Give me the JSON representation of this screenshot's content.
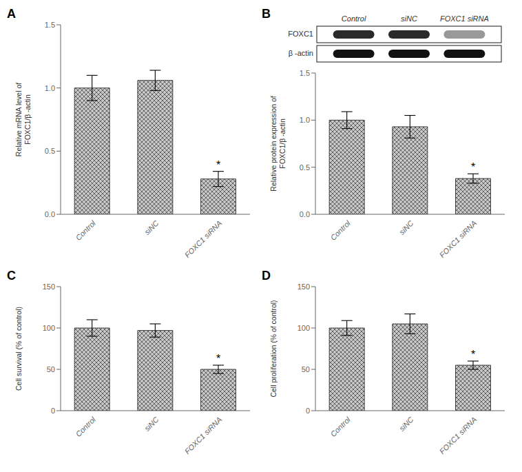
{
  "chart_data": [
    {
      "type": "bar",
      "title": "A",
      "categories": [
        "Control",
        "siNC",
        "FOXC1 siRNA"
      ],
      "values": [
        1.0,
        1.06,
        0.28
      ],
      "errors": [
        0.1,
        0.08,
        0.06
      ],
      "ylabel": "Relative mRNA level of\nFOXC1/β -actin",
      "ylim": [
        0,
        1.5
      ],
      "yticks": [
        {
          "value": 0.0,
          "label": "0.0"
        },
        {
          "value": 0.5,
          "label": "0.5"
        },
        {
          "value": 1.0,
          "label": "1.0"
        },
        {
          "value": 1.5,
          "label": "1.5"
        }
      ],
      "color": "#c8c8c8",
      "annotations": [
        {
          "category": "FOXC1 siRNA",
          "text": "*"
        }
      ]
    },
    {
      "type": "bar",
      "title": "B",
      "categories": [
        "Control",
        "siNC",
        "FOXC1 siRNA"
      ],
      "values": [
        1.0,
        0.93,
        0.38
      ],
      "errors": [
        0.09,
        0.12,
        0.05
      ],
      "ylabel": "Relative protein expression of\nFOXC1/β -actin",
      "ylim": [
        0,
        1.5
      ],
      "yticks": [
        {
          "value": 0.0,
          "label": "0.0"
        },
        {
          "value": 0.5,
          "label": "0.5"
        },
        {
          "value": 1.0,
          "label": "1.0"
        },
        {
          "value": 1.5,
          "label": "1.5"
        }
      ],
      "color": "#c8c8c8",
      "annotations": [
        {
          "category": "FOXC1 siRNA",
          "text": "*"
        }
      ],
      "inset": {
        "type": "western_blot",
        "categories": [
          "Control",
          "siNC",
          "FOXC1 siRNA"
        ],
        "series": [
          {
            "name": "FOXC1",
            "colors": [
              "#2a2a2a",
              "#2a2a2a",
              "#999999"
            ]
          },
          {
            "name": "β -actin",
            "colors": [
              "#111111",
              "#111111",
              "#111111"
            ]
          }
        ]
      }
    },
    {
      "type": "bar",
      "title": "C",
      "categories": [
        "Control",
        "siNC",
        "FOXC1 siRNA"
      ],
      "values": [
        100,
        97,
        50
      ],
      "errors": [
        10,
        8,
        5
      ],
      "ylabel": "Cell survival (% of control)",
      "ylim": [
        0,
        150
      ],
      "yticks": [
        0,
        50,
        100,
        150
      ],
      "color": "#c8c8c8",
      "annotations": [
        {
          "category": "FOXC1 siRNA",
          "text": "*"
        }
      ]
    },
    {
      "type": "bar",
      "title": "D",
      "categories": [
        "Control",
        "siNC",
        "FOXC1 siRNA"
      ],
      "values": [
        100,
        105,
        55
      ],
      "errors": [
        9,
        12,
        5
      ],
      "ylabel": "Cell proliferation (% of control)",
      "ylim": [
        0,
        150
      ],
      "yticks": [
        0,
        50,
        100,
        150
      ],
      "color": "#c8c8c8",
      "annotations": [
        {
          "category": "FOXC1 siRNA",
          "text": "*"
        }
      ]
    }
  ]
}
